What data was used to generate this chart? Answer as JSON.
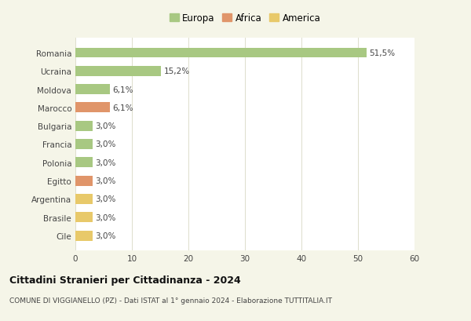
{
  "categories": [
    "Cile",
    "Brasile",
    "Argentina",
    "Egitto",
    "Polonia",
    "Francia",
    "Bulgaria",
    "Marocco",
    "Moldova",
    "Ucraina",
    "Romania"
  ],
  "values": [
    3.0,
    3.0,
    3.0,
    3.0,
    3.0,
    3.0,
    3.0,
    6.1,
    6.1,
    15.2,
    51.5
  ],
  "colors": [
    "#e8c96a",
    "#e8c96a",
    "#e8c96a",
    "#e0956a",
    "#a8c882",
    "#a8c882",
    "#a8c882",
    "#e0956a",
    "#a8c882",
    "#a8c882",
    "#a8c882"
  ],
  "labels": [
    "3,0%",
    "3,0%",
    "3,0%",
    "3,0%",
    "3,0%",
    "3,0%",
    "3,0%",
    "6,1%",
    "6,1%",
    "15,2%",
    "51,5%"
  ],
  "legend": [
    {
      "label": "Europa",
      "color": "#a8c882"
    },
    {
      "label": "Africa",
      "color": "#e0956a"
    },
    {
      "label": "America",
      "color": "#e8c96a"
    }
  ],
  "xlim": [
    0,
    60
  ],
  "xticks": [
    0,
    10,
    20,
    30,
    40,
    50,
    60
  ],
  "title": "Cittadini Stranieri per Cittadinanza - 2024",
  "subtitle": "COMUNE DI VIGGIANELLO (PZ) - Dati ISTAT al 1° gennaio 2024 - Elaborazione TUTTITALIA.IT",
  "background_color": "#f5f5e8",
  "plot_bg_color": "#ffffff",
  "grid_color": "#ddddcc",
  "bar_height": 0.55,
  "label_fontsize": 7.5,
  "ytick_fontsize": 7.5,
  "xtick_fontsize": 7.5,
  "title_fontsize": 9.0,
  "subtitle_fontsize": 6.5
}
